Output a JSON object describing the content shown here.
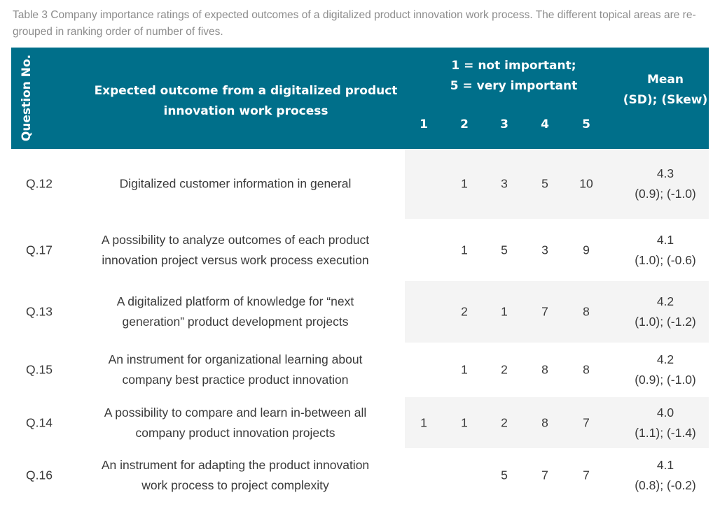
{
  "caption": "Table 3 Company importance ratings of expected outcomes of a digitalized product innovation work process. The different topical areas are re-grouped in ranking order of number of fives.",
  "header": {
    "question_no": "Question No.",
    "outcome_line1": "Expected outcome from a digitalized product",
    "outcome_line2": "innovation work process",
    "scale_line1": "1 = not important;",
    "scale_line2": "5 = very important",
    "ratings": [
      "1",
      "2",
      "3",
      "4",
      "5"
    ],
    "mean_line1": "Mean",
    "mean_line2": "(SD); (Skew)"
  },
  "rows": [
    {
      "q": "Q.12",
      "line1": "Digitalized customer information in general",
      "line2": "",
      "r1": "",
      "r2": "1",
      "r3": "3",
      "r4": "5",
      "r5": "10",
      "mean": "4.3",
      "sd_skew": "(0.9); (-1.0)"
    },
    {
      "q": "Q.17",
      "line1": "A possibility to analyze outcomes of each product",
      "line2": "innovation project versus work process execution",
      "r1": "",
      "r2": "1",
      "r3": "5",
      "r4": "3",
      "r5": "9",
      "mean": "4.1",
      "sd_skew": "(1.0); (-0.6)"
    },
    {
      "q": "Q.13",
      "line1": "A digitalized platform of knowledge for “next",
      "line2": "generation” product development projects",
      "r1": "",
      "r2": "2",
      "r3": "1",
      "r4": "7",
      "r5": "8",
      "mean": "4.2",
      "sd_skew": "(1.0); (-1.2)"
    },
    {
      "q": "Q.15",
      "line1": "An instrument for organizational learning about",
      "line2": "company best practice product innovation",
      "r1": "",
      "r2": "1",
      "r3": "2",
      "r4": "8",
      "r5": "8",
      "mean": "4.2",
      "sd_skew": "(0.9); (-1.0)"
    },
    {
      "q": "Q.14",
      "line1": "A possibility to compare and learn in-between all",
      "line2": "company product innovation projects",
      "r1": "1",
      "r2": "1",
      "r3": "2",
      "r4": "8",
      "r5": "7",
      "mean": "4.0",
      "sd_skew": "(1.1); (-1.4)"
    },
    {
      "q": "Q.16",
      "line1": "An instrument for adapting the product innovation",
      "line2": "work process to project complexity",
      "r1": "",
      "r2": "",
      "r3": "5",
      "r4": "7",
      "r5": "7",
      "mean": "4.1",
      "sd_skew": "(0.8); (-0.2)"
    }
  ]
}
